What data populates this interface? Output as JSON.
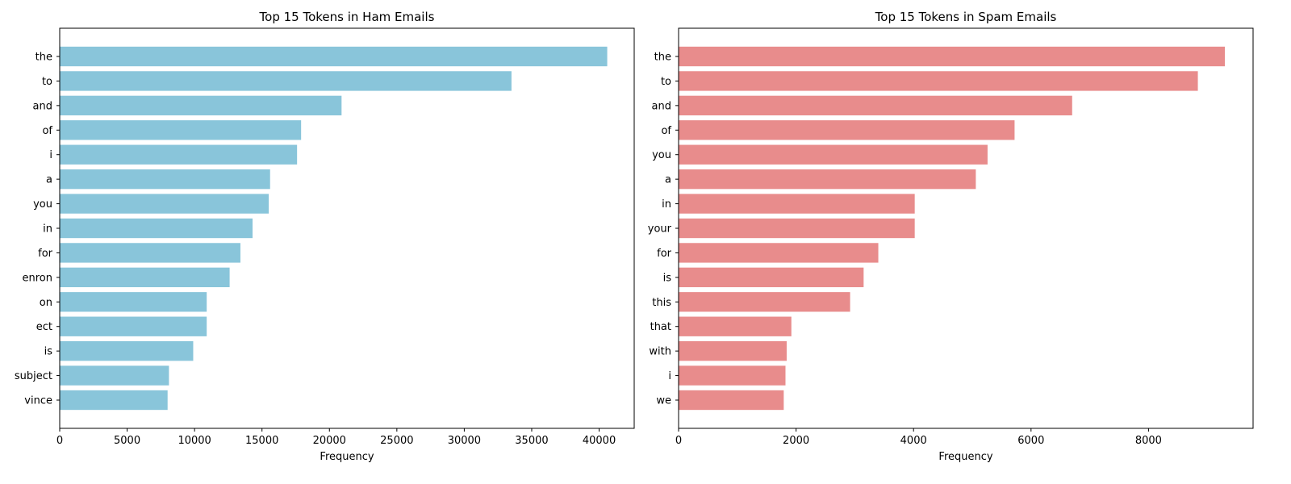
{
  "chart_data": [
    {
      "type": "bar",
      "orientation": "horizontal",
      "title": "Top 15 Tokens in Ham Emails",
      "xlabel": "Frequency",
      "ylabel": "",
      "categories": [
        "the",
        "to",
        "and",
        "of",
        "i",
        "a",
        "you",
        "in",
        "for",
        "enron",
        "on",
        "ect",
        "is",
        "subject",
        "vince"
      ],
      "values": [
        40600,
        33500,
        20900,
        17900,
        17600,
        15600,
        15500,
        14300,
        13400,
        12600,
        10900,
        10900,
        9900,
        8100,
        8000
      ],
      "xlim": [
        0,
        42600
      ],
      "xticks": [
        0,
        5000,
        10000,
        15000,
        20000,
        25000,
        30000,
        35000,
        40000
      ],
      "color": "#89c5da",
      "grid": false
    },
    {
      "type": "bar",
      "orientation": "horizontal",
      "title": "Top 15 Tokens in Spam Emails",
      "xlabel": "Frequency",
      "ylabel": "",
      "categories": [
        "the",
        "to",
        "and",
        "of",
        "you",
        "a",
        "in",
        "your",
        "for",
        "is",
        "this",
        "that",
        "with",
        "i",
        "we"
      ],
      "values": [
        9300,
        8840,
        6700,
        5720,
        5260,
        5060,
        4020,
        4020,
        3400,
        3150,
        2920,
        1920,
        1840,
        1820,
        1790
      ],
      "xlim": [
        0,
        9780
      ],
      "xticks": [
        0,
        2000,
        4000,
        6000,
        8000
      ],
      "color": "#e88c8c",
      "grid": false
    }
  ]
}
